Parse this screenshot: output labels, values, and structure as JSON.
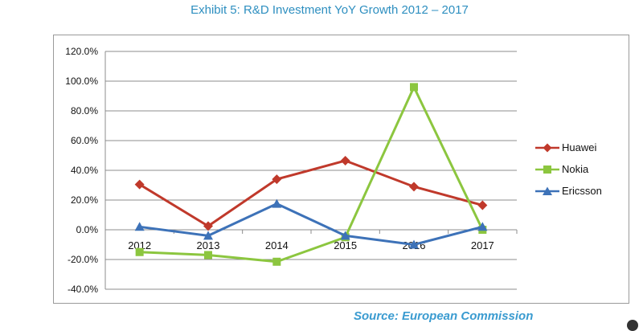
{
  "title": "Exhibit 5: R&D Investment YoY Growth 2012 – 2017",
  "source": "Source: European Commission",
  "chart_data": {
    "type": "line",
    "categories": [
      "2012",
      "2013",
      "2014",
      "2015",
      "2016",
      "2017"
    ],
    "ylim": [
      -40,
      120
    ],
    "ytick_step": 20,
    "ytick_labels": [
      "-40.0%",
      "-20.0%",
      "0.0%",
      "20.0%",
      "40.0%",
      "60.0%",
      "80.0%",
      "100.0%",
      "120.0%"
    ],
    "grid": true,
    "legend_position": "right",
    "series": [
      {
        "name": "Huawei",
        "color": "#c0392b",
        "marker": "diamond",
        "values": [
          30.5,
          2.5,
          34,
          46.5,
          29,
          16.5
        ]
      },
      {
        "name": "Nokia",
        "color": "#8cc63f",
        "marker": "square",
        "values": [
          -15,
          -17,
          -21.5,
          -5,
          96,
          0
        ]
      },
      {
        "name": "Ericsson",
        "color": "#3d72b8",
        "marker": "triangle",
        "values": [
          2,
          -4,
          17.5,
          -4,
          -10,
          2
        ]
      }
    ]
  }
}
